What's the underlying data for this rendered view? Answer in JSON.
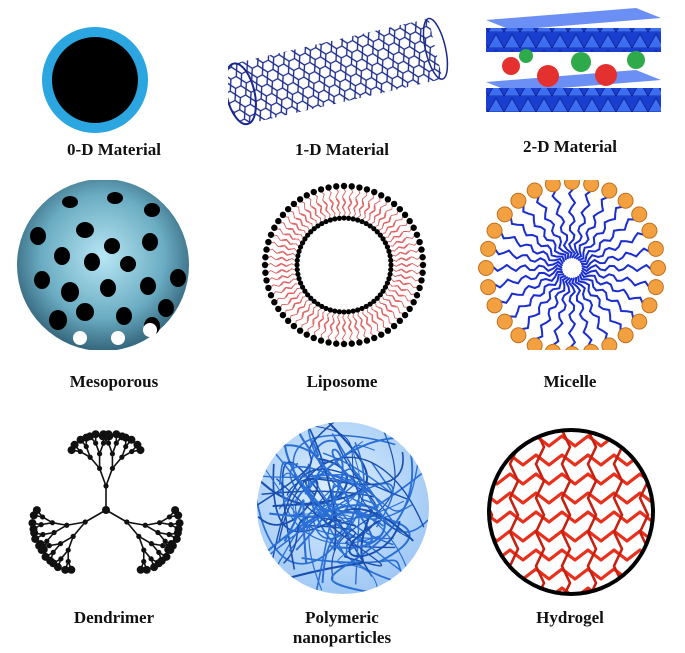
{
  "items": [
    {
      "label": "0-D Material"
    },
    {
      "label": "1-D Material"
    },
    {
      "label": "2-D Material"
    },
    {
      "label": "Mesoporous"
    },
    {
      "label": "Liposome"
    },
    {
      "label": "Micelle"
    },
    {
      "label": "Dendrimer"
    },
    {
      "label": "Polymeric nanoparticles"
    },
    {
      "label": "Hydrogel"
    }
  ],
  "colors": {
    "shell_blue": "#2ba6e0",
    "core_black": "#000000",
    "tube_navy": "#1a2a8c",
    "sheet_blue": "#1a3fd0",
    "ion_red": "#e53030",
    "ion_green": "#2faa4a",
    "meso_teal": "#5b9fb5",
    "lipid_red": "#e06060",
    "micelle_orange": "#f2a040",
    "micelle_chain": "#1a2ed0",
    "polymer_blue": "#2a6fd6",
    "hydrogel_red": "#e8301c"
  }
}
